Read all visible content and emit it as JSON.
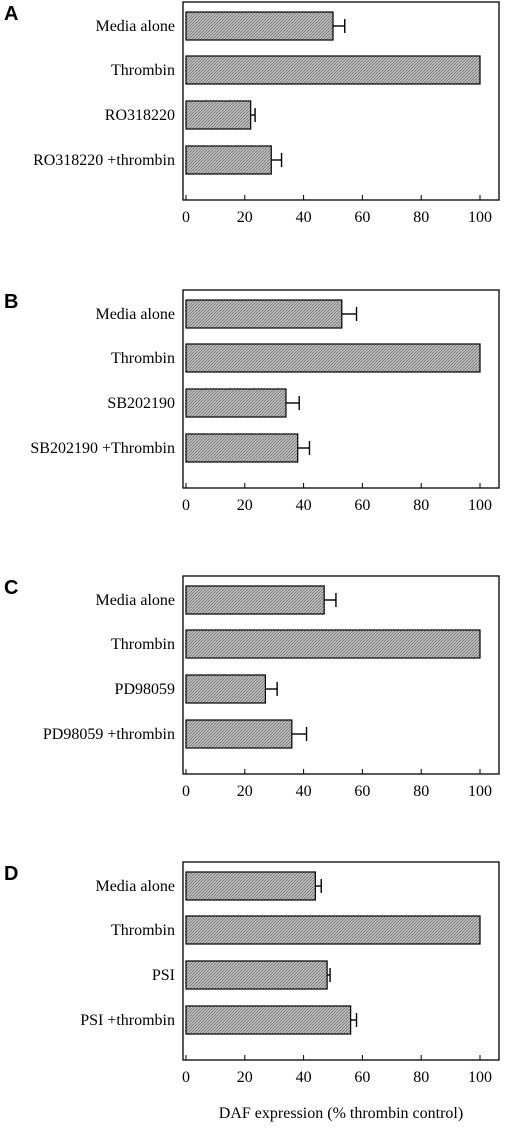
{
  "chart_data": [
    {
      "type": "bar",
      "orientation": "horizontal",
      "panel": "A",
      "categories": [
        "Media alone",
        "Thrombin",
        "RO318220",
        "RO318220 +thrombin"
      ],
      "values": [
        50,
        100,
        22,
        29
      ],
      "errors": [
        4,
        0,
        1.5,
        3.5
      ],
      "xlim": [
        0,
        100
      ],
      "xticks": [
        "0",
        "20",
        "40",
        "60",
        "80",
        "100"
      ]
    },
    {
      "type": "bar",
      "orientation": "horizontal",
      "panel": "B",
      "categories": [
        "Media alone",
        "Thrombin",
        "SB202190",
        "SB202190 +Thrombin"
      ],
      "values": [
        53,
        100,
        34,
        38
      ],
      "errors": [
        5,
        0,
        4.5,
        4
      ],
      "xlim": [
        0,
        100
      ],
      "xticks": [
        "0",
        "20",
        "40",
        "60",
        "80",
        "100"
      ]
    },
    {
      "type": "bar",
      "orientation": "horizontal",
      "panel": "C",
      "categories": [
        "Media alone",
        "Thrombin",
        "PD98059",
        "PD98059 +thrombin"
      ],
      "values": [
        47,
        100,
        27,
        36
      ],
      "errors": [
        4,
        0,
        4,
        5
      ],
      "xlim": [
        0,
        100
      ],
      "xticks": [
        "0",
        "20",
        "40",
        "60",
        "80",
        "100"
      ]
    },
    {
      "type": "bar",
      "orientation": "horizontal",
      "panel": "D",
      "categories": [
        "Media alone",
        "Thrombin",
        "PSI",
        "PSI +thrombin"
      ],
      "values": [
        44,
        100,
        48,
        56
      ],
      "errors": [
        2,
        0,
        1,
        2
      ],
      "xlim": [
        0,
        100
      ],
      "xticks": [
        "0",
        "20",
        "40",
        "60",
        "80",
        "100"
      ],
      "xlabel": "DAF expression (% thrombin control)"
    }
  ],
  "colors": {
    "bar_fill": "#b5b5b5",
    "bar_stroke": "#000000",
    "axis": "#000000"
  }
}
